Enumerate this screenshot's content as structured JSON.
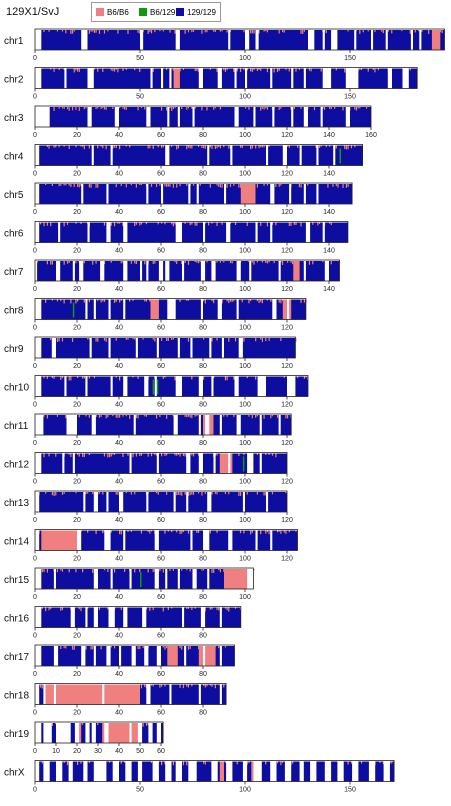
{
  "title": "129X1/SvJ",
  "legend": [
    {
      "label": "B6/B6",
      "color": "#f08080"
    },
    {
      "label": "B6/129",
      "color": "#119911"
    },
    {
      "label": "129/129",
      "color": "#0d0da0"
    }
  ],
  "chart_data": {
    "type": "bar",
    "x_unit": "Mb",
    "chromosomes": [
      {
        "name": "chr1",
        "length": 195,
        "ticks": [
          0,
          50,
          100,
          150
        ]
      },
      {
        "name": "chr2",
        "length": 182,
        "ticks": [
          0,
          50,
          100,
          150
        ]
      },
      {
        "name": "chr3",
        "length": 160,
        "ticks": [
          0,
          20,
          40,
          60,
          80,
          100,
          120,
          140,
          160
        ]
      },
      {
        "name": "chr4",
        "length": 156,
        "ticks": [
          0,
          20,
          40,
          60,
          80,
          100,
          120,
          140
        ]
      },
      {
        "name": "chr5",
        "length": 151,
        "ticks": [
          0,
          20,
          40,
          60,
          80,
          100,
          120,
          140
        ]
      },
      {
        "name": "chr6",
        "length": 149,
        "ticks": [
          0,
          20,
          40,
          60,
          80,
          100,
          120,
          140
        ]
      },
      {
        "name": "chr7",
        "length": 145,
        "ticks": [
          0,
          20,
          40,
          60,
          80,
          100,
          120,
          140
        ]
      },
      {
        "name": "chr8",
        "length": 129,
        "ticks": [
          0,
          20,
          40,
          60,
          80,
          100,
          120
        ]
      },
      {
        "name": "chr9",
        "length": 124,
        "ticks": [
          0,
          20,
          40,
          60,
          80,
          100,
          120
        ]
      },
      {
        "name": "chr10",
        "length": 130,
        "ticks": [
          0,
          20,
          40,
          60,
          80,
          100,
          120
        ]
      },
      {
        "name": "chr11",
        "length": 122,
        "ticks": [
          0,
          20,
          40,
          60,
          80,
          100,
          120
        ]
      },
      {
        "name": "chr12",
        "length": 120,
        "ticks": [
          0,
          20,
          40,
          60,
          80,
          100,
          120
        ]
      },
      {
        "name": "chr13",
        "length": 120,
        "ticks": [
          0,
          20,
          40,
          60,
          80,
          100,
          120
        ]
      },
      {
        "name": "chr14",
        "length": 125,
        "ticks": [
          0,
          20,
          40,
          60,
          80,
          100,
          120
        ]
      },
      {
        "name": "chr15",
        "length": 104,
        "ticks": [
          0,
          20,
          40,
          60,
          80,
          100
        ]
      },
      {
        "name": "chr16",
        "length": 98,
        "ticks": [
          0,
          20,
          40,
          60,
          80
        ]
      },
      {
        "name": "chr17",
        "length": 95,
        "ticks": [
          0,
          20,
          40,
          60,
          80
        ]
      },
      {
        "name": "chr18",
        "length": 91,
        "ticks": [
          0,
          20,
          40,
          60,
          80
        ]
      },
      {
        "name": "chr19",
        "length": 61,
        "ticks": [
          0,
          10,
          20,
          30,
          40,
          50,
          60
        ]
      },
      {
        "name": "chrX",
        "length": 171,
        "ticks": [
          0,
          50,
          100,
          150
        ]
      }
    ],
    "gaps": {
      "chr1": [
        [
          0,
          3
        ],
        [
          22,
          25
        ],
        [
          50,
          51.5
        ],
        [
          67,
          69
        ],
        [
          92,
          93
        ],
        [
          100,
          102
        ],
        [
          105,
          106.5
        ],
        [
          130,
          133
        ],
        [
          137,
          138
        ],
        [
          141,
          144
        ],
        [
          152,
          153
        ],
        [
          160,
          161
        ],
        [
          167,
          168
        ],
        [
          179,
          180
        ],
        [
          183,
          184
        ]
      ],
      "chr2": [
        [
          0,
          3
        ],
        [
          14,
          15
        ],
        [
          25,
          28
        ],
        [
          55,
          56
        ],
        [
          60,
          61
        ],
        [
          64,
          65
        ],
        [
          78,
          80
        ],
        [
          87,
          89
        ],
        [
          95,
          96
        ],
        [
          100,
          101
        ],
        [
          112,
          113
        ],
        [
          122,
          123
        ],
        [
          128,
          129
        ],
        [
          137,
          141
        ],
        [
          148,
          154
        ],
        [
          168,
          170
        ],
        [
          175,
          178
        ]
      ],
      "chr3": [
        [
          0,
          7
        ],
        [
          25,
          27
        ],
        [
          38,
          40
        ],
        [
          53,
          55
        ],
        [
          63,
          64
        ],
        [
          68,
          69
        ],
        [
          75,
          76
        ],
        [
          95,
          97
        ],
        [
          104,
          105
        ],
        [
          113,
          114
        ],
        [
          122,
          123
        ],
        [
          128,
          130
        ],
        [
          136,
          137
        ],
        [
          148,
          150
        ]
      ],
      "chr4": [
        [
          0,
          2
        ],
        [
          27,
          28
        ],
        [
          36,
          37
        ],
        [
          62,
          64
        ],
        [
          82,
          83
        ],
        [
          93,
          94
        ],
        [
          110,
          111
        ],
        [
          118,
          120
        ],
        [
          126,
          127
        ],
        [
          134,
          135
        ],
        [
          142,
          143
        ]
      ],
      "chr5": [
        [
          0,
          2
        ],
        [
          22,
          23
        ],
        [
          34,
          35
        ],
        [
          53,
          54
        ],
        [
          60,
          61
        ],
        [
          73,
          74
        ],
        [
          77,
          78
        ],
        [
          90,
          91
        ],
        [
          112,
          114
        ],
        [
          121,
          122
        ],
        [
          128,
          129
        ],
        [
          134,
          135
        ]
      ],
      "chr6": [
        [
          0,
          2
        ],
        [
          11,
          12
        ],
        [
          25,
          26
        ],
        [
          34,
          36
        ],
        [
          42,
          44
        ],
        [
          67,
          70
        ],
        [
          80,
          81
        ],
        [
          91,
          93
        ],
        [
          105,
          106
        ],
        [
          112,
          113
        ],
        [
          129,
          131
        ],
        [
          137,
          138
        ]
      ],
      "chr7": [
        [
          0,
          1
        ],
        [
          10,
          12
        ],
        [
          18,
          19
        ],
        [
          21,
          23
        ],
        [
          31,
          33
        ],
        [
          42,
          44
        ],
        [
          50,
          51
        ],
        [
          53,
          54
        ],
        [
          59,
          61
        ],
        [
          62,
          64
        ],
        [
          70,
          71
        ],
        [
          79,
          81
        ],
        [
          84,
          86
        ],
        [
          96,
          98
        ],
        [
          102,
          103
        ],
        [
          116,
          117
        ],
        [
          128,
          129
        ],
        [
          138,
          140
        ]
      ],
      "chr8": [
        [
          0,
          3
        ],
        [
          24,
          25
        ],
        [
          28,
          29
        ],
        [
          35,
          36
        ],
        [
          42,
          43
        ],
        [
          63,
          67
        ],
        [
          79,
          80
        ],
        [
          87,
          89
        ],
        [
          96,
          97
        ],
        [
          113,
          115
        ],
        [
          120,
          121
        ]
      ],
      "chr9": [
        [
          0,
          3
        ],
        [
          8,
          10
        ],
        [
          26,
          27
        ],
        [
          35,
          36
        ],
        [
          48,
          49
        ],
        [
          58,
          59
        ],
        [
          68,
          69
        ],
        [
          74,
          75
        ],
        [
          83,
          84
        ],
        [
          89,
          90
        ],
        [
          97,
          99
        ]
      ],
      "chr10": [
        [
          0,
          3
        ],
        [
          14,
          15
        ],
        [
          24,
          25
        ],
        [
          36,
          37
        ],
        [
          42,
          44
        ],
        [
          52,
          54
        ],
        [
          57,
          58
        ],
        [
          67,
          70
        ],
        [
          78,
          80
        ],
        [
          84,
          85
        ],
        [
          95,
          97
        ],
        [
          106,
          110
        ],
        [
          120,
          124
        ]
      ],
      "chr11": [
        [
          0,
          4
        ],
        [
          15,
          20
        ],
        [
          27,
          29
        ],
        [
          47,
          48
        ],
        [
          66,
          68
        ],
        [
          78,
          79
        ],
        [
          81,
          83
        ],
        [
          88,
          89
        ],
        [
          96,
          98
        ],
        [
          107,
          108
        ],
        [
          116,
          117
        ]
      ],
      "chr12": [
        [
          0,
          3
        ],
        [
          13,
          14
        ],
        [
          18,
          19
        ],
        [
          45,
          46
        ],
        [
          58,
          59
        ],
        [
          72,
          74
        ],
        [
          78,
          80
        ],
        [
          85,
          86
        ],
        [
          92,
          93
        ],
        [
          101,
          104
        ],
        [
          107,
          108
        ]
      ],
      "chr13": [
        [
          0,
          2
        ],
        [
          23,
          24
        ],
        [
          28,
          30
        ],
        [
          34,
          35
        ],
        [
          40,
          42
        ],
        [
          53,
          54
        ],
        [
          66,
          67
        ],
        [
          72,
          73
        ],
        [
          82,
          84
        ],
        [
          99,
          100
        ],
        [
          110,
          111
        ]
      ],
      "chr14": [
        [
          0,
          2
        ],
        [
          20,
          22
        ],
        [
          33,
          36
        ],
        [
          42,
          43
        ],
        [
          57,
          59
        ],
        [
          74,
          75
        ],
        [
          80,
          83
        ],
        [
          92,
          94
        ],
        [
          105,
          106
        ],
        [
          112,
          113
        ]
      ],
      "chr15": [
        [
          0,
          3
        ],
        [
          9,
          10
        ],
        [
          28,
          30
        ],
        [
          36,
          37
        ],
        [
          45,
          46
        ],
        [
          57,
          59
        ],
        [
          62,
          63
        ],
        [
          68,
          69
        ],
        [
          75,
          77
        ],
        [
          82,
          83
        ],
        [
          101,
          104
        ]
      ],
      "chr16": [
        [
          0,
          3
        ],
        [
          17,
          19
        ],
        [
          24,
          25
        ],
        [
          28,
          30
        ],
        [
          35,
          38
        ],
        [
          42,
          44
        ],
        [
          51,
          53
        ],
        [
          70,
          71
        ],
        [
          79,
          81
        ],
        [
          88,
          89
        ]
      ],
      "chr17": [
        [
          0,
          3
        ],
        [
          9,
          11
        ],
        [
          22,
          24
        ],
        [
          28,
          29
        ],
        [
          34,
          36
        ],
        [
          40,
          41
        ],
        [
          46,
          48
        ],
        [
          52,
          54
        ],
        [
          58,
          60
        ],
        [
          71,
          72
        ],
        [
          80,
          81
        ],
        [
          88,
          89
        ]
      ],
      "chr18": [
        [
          0,
          2
        ],
        [
          4,
          5
        ],
        [
          9,
          10
        ],
        [
          32,
          33
        ],
        [
          53,
          55
        ],
        [
          64,
          65
        ],
        [
          78,
          79
        ],
        [
          88,
          89
        ]
      ],
      "chr19": [
        [
          0,
          3
        ],
        [
          4,
          8
        ],
        [
          10,
          17
        ],
        [
          19,
          21
        ],
        [
          24,
          26
        ],
        [
          27,
          29
        ],
        [
          33,
          35
        ],
        [
          45,
          46
        ],
        [
          49,
          51
        ],
        [
          54,
          56
        ],
        [
          58,
          60
        ]
      ],
      "chrX": [
        [
          0,
          2
        ],
        [
          4,
          7
        ],
        [
          10,
          13
        ],
        [
          16,
          18
        ],
        [
          23,
          25
        ],
        [
          28,
          34
        ],
        [
          37,
          40
        ],
        [
          43,
          46
        ],
        [
          49,
          51
        ],
        [
          56,
          59
        ],
        [
          62,
          65
        ],
        [
          67,
          70
        ],
        [
          73,
          77
        ],
        [
          84,
          87
        ],
        [
          91,
          94
        ],
        [
          99,
          101
        ],
        [
          104,
          108
        ],
        [
          112,
          115
        ],
        [
          119,
          122
        ],
        [
          126,
          128
        ],
        [
          131,
          134
        ],
        [
          138,
          141
        ],
        [
          144,
          147
        ],
        [
          151,
          154
        ],
        [
          159,
          162
        ],
        [
          166,
          169
        ]
      ]
    },
    "b6b6_regions": {
      "chr1": [
        [
          189,
          193
        ]
      ],
      "chr2": [
        [
          66,
          69
        ]
      ],
      "chr5": [
        [
          98,
          105
        ]
      ],
      "chr7": [
        [
          123,
          126
        ]
      ],
      "chr8": [
        [
          55,
          59
        ],
        [
          118,
          122
        ]
      ],
      "chr11": [
        [
          80,
          85
        ]
      ],
      "chr12": [
        [
          88,
          94
        ]
      ],
      "chr14": [
        [
          3,
          20
        ]
      ],
      "chr15": [
        [
          90,
          101
        ]
      ],
      "chr17": [
        [
          63,
          68
        ],
        [
          78,
          86
        ]
      ],
      "chr18": [
        [
          5,
          50
        ]
      ],
      "chr19": [
        [
          20,
          22
        ],
        [
          32,
          50
        ]
      ],
      "chrX": [
        [
          88,
          90
        ],
        [
          103,
          104
        ]
      ]
    },
    "b6129_marks": {
      "chr4": [
        145
      ],
      "chr8": [
        18
      ],
      "chr10": [
        56,
        58
      ],
      "chr12": [
        99
      ],
      "chr15": [
        50
      ]
    }
  }
}
